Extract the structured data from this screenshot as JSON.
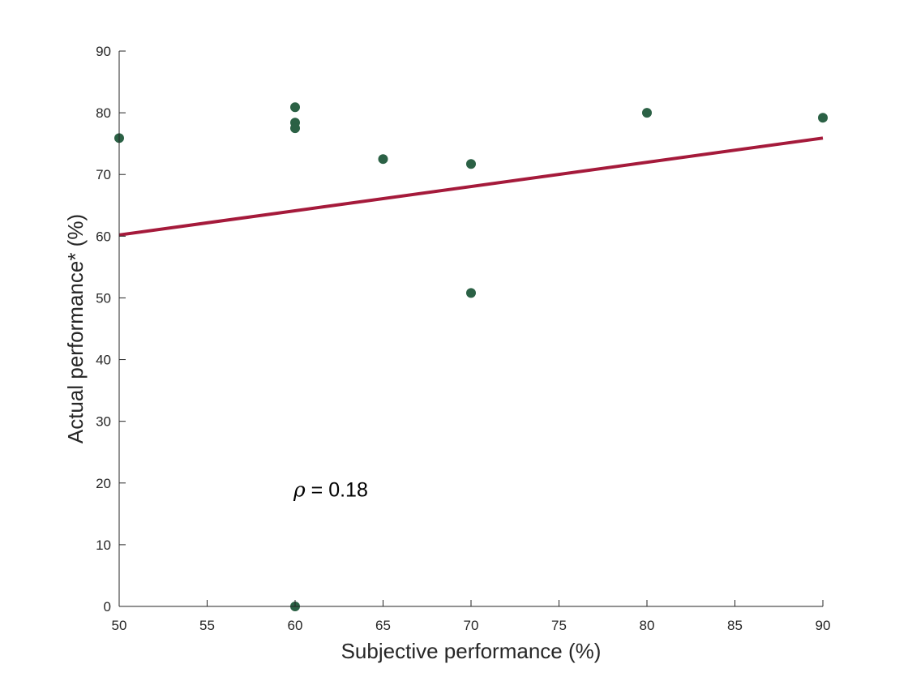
{
  "chart_data": {
    "type": "scatter",
    "xlabel": "Subjective performance (%)",
    "ylabel": "Actual performance* (%)",
    "xlim": [
      50,
      90
    ],
    "ylim": [
      0,
      90
    ],
    "x_ticks": [
      "50",
      "55",
      "60",
      "65",
      "70",
      "75",
      "80",
      "85",
      "90"
    ],
    "y_ticks": [
      "0",
      "10",
      "20",
      "30",
      "40",
      "50",
      "60",
      "70",
      "80",
      "90"
    ],
    "grid": false,
    "series": [
      {
        "points": [
          {
            "x": 50,
            "y": 75.9
          },
          {
            "x": 60,
            "y": 80.9
          },
          {
            "x": 60,
            "y": 78.4
          },
          {
            "x": 60,
            "y": 77.5
          },
          {
            "x": 60,
            "y": 0
          },
          {
            "x": 65,
            "y": 72.5
          },
          {
            "x": 70,
            "y": 71.7
          },
          {
            "x": 70,
            "y": 50.8
          },
          {
            "x": 80,
            "y": 80.0
          },
          {
            "x": 90,
            "y": 79.2
          }
        ],
        "color": "#2b6145"
      }
    ],
    "fit_line": {
      "x": [
        50,
        90
      ],
      "y": [
        60.2,
        75.9
      ],
      "color": "#a51a3b"
    },
    "annotation": {
      "symbol": "ρ",
      "text": " = 0.18",
      "x": 60,
      "y": 19.5
    }
  }
}
